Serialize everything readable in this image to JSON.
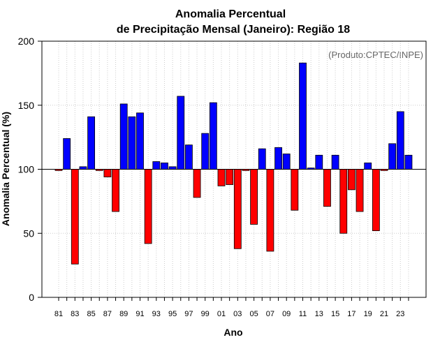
{
  "chart_data": {
    "type": "bar",
    "title": "Anomalia Percentual",
    "subtitle": "de Precipitação Mensal (Janeiro): Região 18",
    "xlabel": "Ano",
    "ylabel": "Anomalia Percentual (%)",
    "credit": "(Produto:CPTEC/INPE)",
    "baseline": 100,
    "ylim": [
      0,
      200
    ],
    "yticks": [
      0,
      50,
      100,
      150,
      200
    ],
    "grid": true,
    "colors": {
      "above": "#0000ff",
      "below": "#ff0000",
      "edge": "#000000",
      "grid": "#cccccc"
    },
    "categories": [
      "1981",
      "1982",
      "1983",
      "1984",
      "1985",
      "1986",
      "1987",
      "1988",
      "1989",
      "1990",
      "1991",
      "1992",
      "1993",
      "1994",
      "1995",
      "1996",
      "1997",
      "1998",
      "1999",
      "2000",
      "2001",
      "2002",
      "2003",
      "2004",
      "2005",
      "2006",
      "2007",
      "2008",
      "2009",
      "2010",
      "2011",
      "2012",
      "2013",
      "2014",
      "2015",
      "2016",
      "2017",
      "2018",
      "2019",
      "2020",
      "2021",
      "2022",
      "2023",
      "2024"
    ],
    "tick_labels": [
      "81",
      "",
      "83",
      "",
      "85",
      "",
      "87",
      "",
      "89",
      "",
      "91",
      "",
      "93",
      "",
      "95",
      "",
      "97",
      "",
      "99",
      "",
      "01",
      "",
      "03",
      "",
      "05",
      "",
      "07",
      "",
      "09",
      "",
      "11",
      "",
      "13",
      "",
      "15",
      "",
      "17",
      "",
      "19",
      "",
      "21",
      "",
      "23",
      ""
    ],
    "values": [
      99,
      124,
      26,
      102,
      141,
      99,
      94,
      67,
      151,
      141,
      144,
      42,
      106,
      105,
      102,
      157,
      119,
      78,
      128,
      152,
      87,
      88,
      38,
      99,
      57,
      116,
      36,
      117,
      112,
      68,
      183,
      101,
      111,
      71,
      111,
      50,
      84,
      67,
      105,
      52,
      99,
      120,
      145,
      111
    ]
  }
}
